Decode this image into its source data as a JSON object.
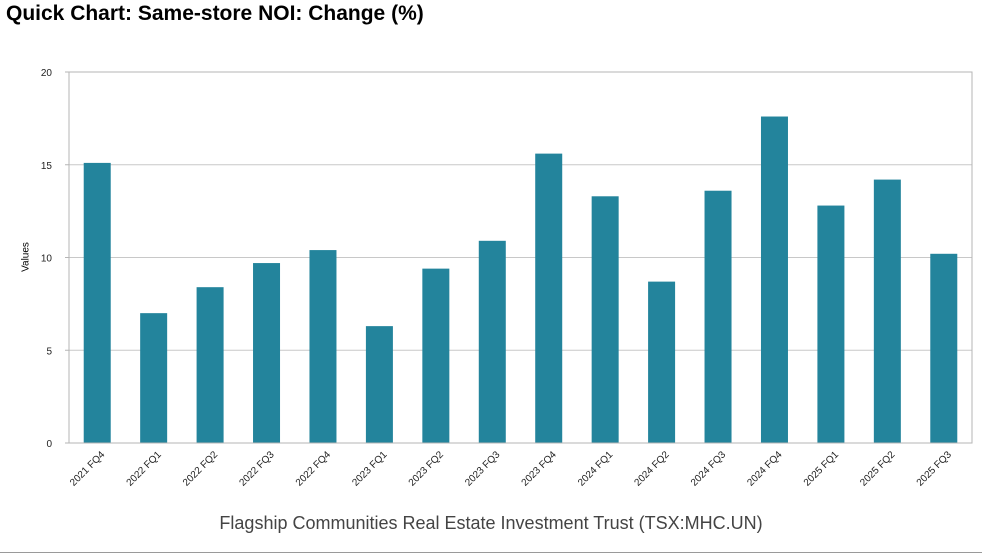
{
  "header": {
    "title": "Quick Chart: Same-store NOI: Change (%)"
  },
  "footer": {
    "company": "Flagship Communities Real Estate Investment Trust (TSX:MHC.UN)"
  },
  "chart_data": {
    "type": "bar",
    "title": "Quick Chart: Same-store NOI: Change (%)",
    "xlabel": "",
    "ylabel": "Values",
    "ylim": [
      0,
      20
    ],
    "yticks": [
      0,
      5,
      10,
      15,
      20
    ],
    "grid": true,
    "bar_color": "#23849c",
    "categories": [
      "2021 FQ4",
      "2022 FQ1",
      "2022 FQ2",
      "2022 FQ3",
      "2022 FQ4",
      "2023 FQ1",
      "2023 FQ2",
      "2023 FQ3",
      "2023 FQ4",
      "2024 FQ1",
      "2024 FQ2",
      "2024 FQ3",
      "2024 FQ4",
      "2025 FQ1",
      "2025 FQ2",
      "2025 FQ3"
    ],
    "values": [
      15.1,
      7.0,
      8.4,
      9.7,
      10.4,
      6.3,
      9.4,
      10.9,
      15.6,
      13.3,
      8.7,
      13.6,
      17.6,
      12.8,
      14.2,
      10.2
    ]
  }
}
